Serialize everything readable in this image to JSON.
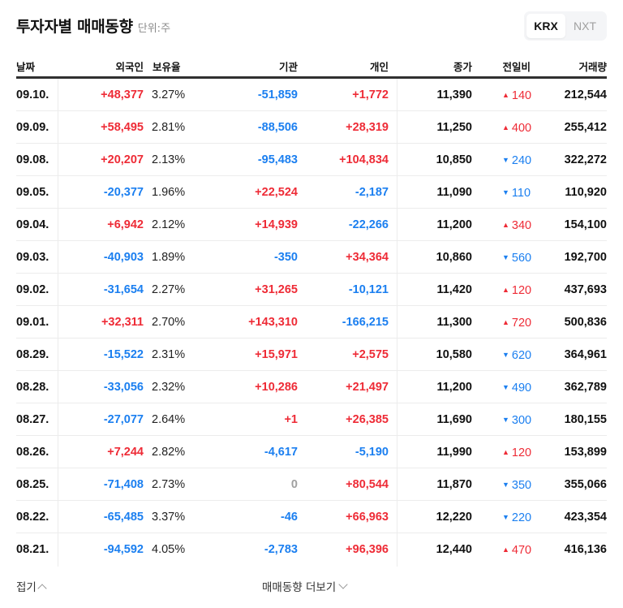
{
  "header": {
    "title": "투자자별 매매동향",
    "unit": "단위:주"
  },
  "market_toggle": {
    "options": [
      {
        "label": "KRX",
        "active": true
      },
      {
        "label": "NXT",
        "active": false
      }
    ]
  },
  "table": {
    "columns": [
      "날짜",
      "외국인",
      "보유율",
      "기관",
      "개인",
      "종가",
      "전일비",
      "거래량"
    ],
    "rows": [
      {
        "date": "09.10.",
        "foreign": "+48,377",
        "ratio": "3.27%",
        "inst": "-51,859",
        "indiv": "+1,772",
        "close": "11,390",
        "change_dir": "up",
        "change": "140",
        "volume": "212,544"
      },
      {
        "date": "09.09.",
        "foreign": "+58,495",
        "ratio": "2.81%",
        "inst": "-88,506",
        "indiv": "+28,319",
        "close": "11,250",
        "change_dir": "up",
        "change": "400",
        "volume": "255,412"
      },
      {
        "date": "09.08.",
        "foreign": "+20,207",
        "ratio": "2.13%",
        "inst": "-95,483",
        "indiv": "+104,834",
        "close": "10,850",
        "change_dir": "down",
        "change": "240",
        "volume": "322,272"
      },
      {
        "date": "09.05.",
        "foreign": "-20,377",
        "ratio": "1.96%",
        "inst": "+22,524",
        "indiv": "-2,187",
        "close": "11,090",
        "change_dir": "down",
        "change": "110",
        "volume": "110,920"
      },
      {
        "date": "09.04.",
        "foreign": "+6,942",
        "ratio": "2.12%",
        "inst": "+14,939",
        "indiv": "-22,266",
        "close": "11,200",
        "change_dir": "up",
        "change": "340",
        "volume": "154,100"
      },
      {
        "date": "09.03.",
        "foreign": "-40,903",
        "ratio": "1.89%",
        "inst": "-350",
        "indiv": "+34,364",
        "close": "10,860",
        "change_dir": "down",
        "change": "560",
        "volume": "192,700"
      },
      {
        "date": "09.02.",
        "foreign": "-31,654",
        "ratio": "2.27%",
        "inst": "+31,265",
        "indiv": "-10,121",
        "close": "11,420",
        "change_dir": "up",
        "change": "120",
        "volume": "437,693"
      },
      {
        "date": "09.01.",
        "foreign": "+32,311",
        "ratio": "2.70%",
        "inst": "+143,310",
        "indiv": "-166,215",
        "close": "11,300",
        "change_dir": "up",
        "change": "720",
        "volume": "500,836"
      },
      {
        "date": "08.29.",
        "foreign": "-15,522",
        "ratio": "2.31%",
        "inst": "+15,971",
        "indiv": "+2,575",
        "close": "10,580",
        "change_dir": "down",
        "change": "620",
        "volume": "364,961"
      },
      {
        "date": "08.28.",
        "foreign": "-33,056",
        "ratio": "2.32%",
        "inst": "+10,286",
        "indiv": "+21,497",
        "close": "11,200",
        "change_dir": "down",
        "change": "490",
        "volume": "362,789"
      },
      {
        "date": "08.27.",
        "foreign": "-27,077",
        "ratio": "2.64%",
        "inst": "+1",
        "indiv": "+26,385",
        "close": "11,690",
        "change_dir": "down",
        "change": "300",
        "volume": "180,155"
      },
      {
        "date": "08.26.",
        "foreign": "+7,244",
        "ratio": "2.82%",
        "inst": "-4,617",
        "indiv": "-5,190",
        "close": "11,990",
        "change_dir": "up",
        "change": "120",
        "volume": "153,899"
      },
      {
        "date": "08.25.",
        "foreign": "-71,408",
        "ratio": "2.73%",
        "inst": "0",
        "indiv": "+80,544",
        "close": "11,870",
        "change_dir": "down",
        "change": "350",
        "volume": "355,066"
      },
      {
        "date": "08.22.",
        "foreign": "-65,485",
        "ratio": "3.37%",
        "inst": "-46",
        "indiv": "+66,963",
        "close": "12,220",
        "change_dir": "down",
        "change": "220",
        "volume": "423,354"
      },
      {
        "date": "08.21.",
        "foreign": "-94,592",
        "ratio": "4.05%",
        "inst": "-2,783",
        "indiv": "+96,396",
        "close": "12,440",
        "change_dir": "up",
        "change": "470",
        "volume": "416,136"
      }
    ]
  },
  "footer": {
    "collapse_label": "접기",
    "more_label": "매매동향 더보기"
  },
  "colors": {
    "up": "#ee2b36",
    "down": "#1b7ff0",
    "neutral": "#a0a0a0",
    "header_border": "#303030"
  },
  "icons": {
    "up": "▲",
    "down": "▼",
    "collapse": "chevron-up-icon",
    "more": "chevron-down-icon"
  }
}
